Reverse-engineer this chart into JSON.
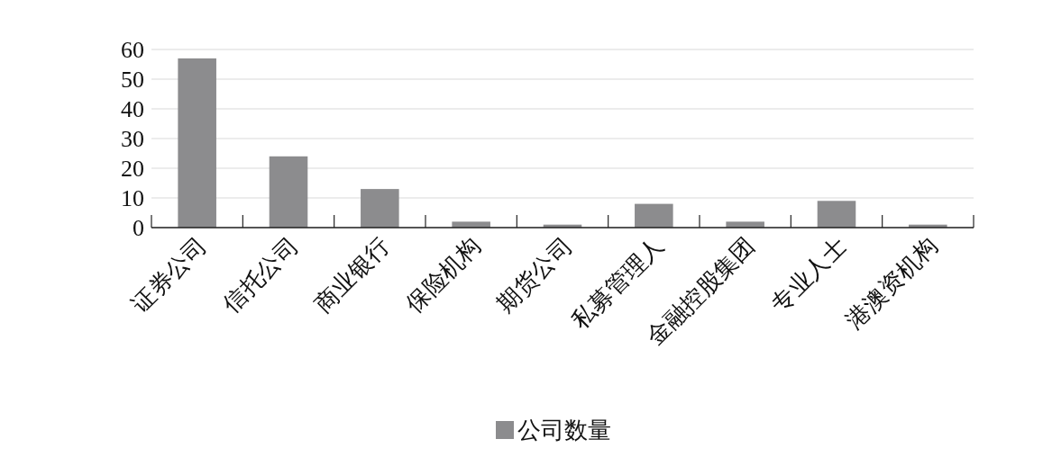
{
  "chart_data": {
    "type": "bar",
    "categories": [
      "证券公司",
      "信托公司",
      "商业银行",
      "保险机构",
      "期货公司",
      "私募管理人",
      "金融控股集团",
      "专业人士",
      "港澳资机构"
    ],
    "series": [
      {
        "name": "公司数量",
        "color": "#8c8c8e",
        "values": [
          57,
          24,
          13,
          2,
          1,
          8,
          2,
          9,
          1
        ]
      }
    ],
    "ylim": [
      0,
      60
    ],
    "yticks": [
      0,
      10,
      20,
      30,
      40,
      50,
      60
    ],
    "grid": "y",
    "legend": "bottom"
  }
}
